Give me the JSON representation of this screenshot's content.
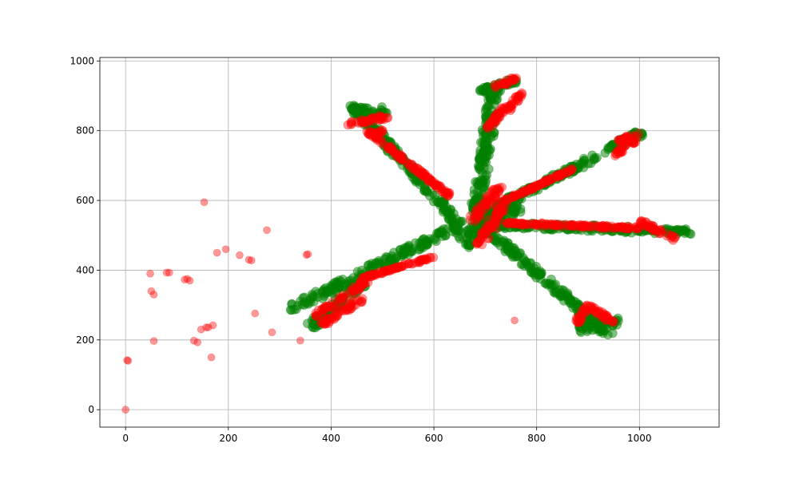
{
  "chart_data": {
    "type": "scatter",
    "title": "",
    "xlabel": "",
    "ylabel": "",
    "xlim": [
      -50,
      1155
    ],
    "ylim": [
      -50,
      1010
    ],
    "grid": true,
    "xticks": [
      0,
      200,
      400,
      600,
      800,
      1000
    ],
    "yticks": [
      0,
      200,
      400,
      600,
      800,
      1000
    ],
    "series": [
      {
        "color": "#008000",
        "alpha": 0.5,
        "marker_shape": "circle",
        "strokes": [
          {
            "from": [
              320,
              288
            ],
            "to": [
              650,
              530
            ],
            "width": 24
          },
          {
            "from": [
              650,
              530
            ],
            "to": [
              440,
              875
            ],
            "width": 18
          },
          {
            "from": [
              435,
              860
            ],
            "to": [
              510,
              855
            ],
            "width": 22
          },
          {
            "from": [
              680,
              545
            ],
            "to": [
              720,
              930
            ],
            "width": 22
          },
          {
            "from": [
              690,
              910
            ],
            "to": [
              760,
              945
            ],
            "width": 20
          },
          {
            "from": [
              700,
              560
            ],
            "to": [
              1010,
              800
            ],
            "width": 18
          },
          {
            "from": [
              700,
              530
            ],
            "to": [
              1100,
              510
            ],
            "width": 16
          },
          {
            "from": [
              700,
              520
            ],
            "to": [
              940,
              215
            ],
            "width": 20
          },
          {
            "from": [
              880,
              230
            ],
            "to": [
              965,
              255
            ],
            "width": 18
          },
          {
            "from": [
              640,
              500
            ],
            "to": [
              770,
              580
            ],
            "width": 30
          },
          {
            "from": [
              660,
              470
            ],
            "to": [
              760,
              620
            ],
            "width": 26
          },
          {
            "from": [
              360,
              240
            ],
            "to": [
              460,
              360
            ],
            "width": 22
          }
        ]
      },
      {
        "color": "#ff0000",
        "alpha": 0.4,
        "marker_shape": "circle",
        "strokes": [
          {
            "from": [
              370,
              270
            ],
            "to": [
              470,
              370
            ],
            "width": 14
          },
          {
            "from": [
              385,
              245
            ],
            "to": [
              460,
              320
            ],
            "width": 12
          },
          {
            "from": [
              460,
              375
            ],
            "to": [
              600,
              440
            ],
            "width": 4
          },
          {
            "from": [
              630,
              615
            ],
            "to": [
              470,
              800
            ],
            "width": 8
          },
          {
            "from": [
              430,
              820
            ],
            "to": [
              510,
              840
            ],
            "width": 12
          },
          {
            "from": [
              470,
              790
            ],
            "to": [
              510,
              800
            ],
            "width": 12
          },
          {
            "from": [
              715,
              925
            ],
            "to": [
              760,
              950
            ],
            "width": 12
          },
          {
            "from": [
              745,
              860
            ],
            "to": [
              770,
              910
            ],
            "width": 12
          },
          {
            "from": [
              700,
              800
            ],
            "to": [
              740,
              870
            ],
            "width": 10
          },
          {
            "from": [
              690,
              470
            ],
            "to": [
              740,
              600
            ],
            "width": 20
          },
          {
            "from": [
              670,
              540
            ],
            "to": [
              730,
              640
            ],
            "width": 16
          },
          {
            "from": [
              740,
              535
            ],
            "to": [
              1000,
              520
            ],
            "width": 6
          },
          {
            "from": [
              1000,
              540
            ],
            "to": [
              1070,
              490
            ],
            "width": 10
          },
          {
            "from": [
              960,
              770
            ],
            "to": [
              1000,
              790
            ],
            "width": 10
          },
          {
            "from": [
              950,
              730
            ],
            "to": [
              990,
              770
            ],
            "width": 10
          },
          {
            "from": [
              740,
              600
            ],
            "to": [
              870,
              690
            ],
            "width": 4
          },
          {
            "from": [
              900,
              300
            ],
            "to": [
              950,
              250
            ],
            "width": 12
          },
          {
            "from": [
              880,
              250
            ],
            "to": [
              900,
              300
            ],
            "width": 10
          }
        ],
        "points": [
          [
            0,
            0
          ],
          [
            5,
            140
          ],
          [
            3,
            142
          ],
          [
            48,
            390
          ],
          [
            50,
            340
          ],
          [
            55,
            330
          ],
          [
            55,
            197
          ],
          [
            80,
            393
          ],
          [
            85,
            393
          ],
          [
            115,
            373
          ],
          [
            120,
            375
          ],
          [
            125,
            370
          ],
          [
            133,
            198
          ],
          [
            140,
            193
          ],
          [
            147,
            230
          ],
          [
            153,
            595
          ],
          [
            157,
            236
          ],
          [
            161,
            236
          ],
          [
            167,
            150
          ],
          [
            170,
            242
          ],
          [
            178,
            450
          ],
          [
            195,
            460
          ],
          [
            222,
            443
          ],
          [
            240,
            430
          ],
          [
            245,
            428
          ],
          [
            252,
            276
          ],
          [
            275,
            515
          ],
          [
            285,
            222
          ],
          [
            340,
            198
          ],
          [
            352,
            444
          ],
          [
            355,
            446
          ],
          [
            757,
            256
          ]
        ]
      }
    ]
  }
}
